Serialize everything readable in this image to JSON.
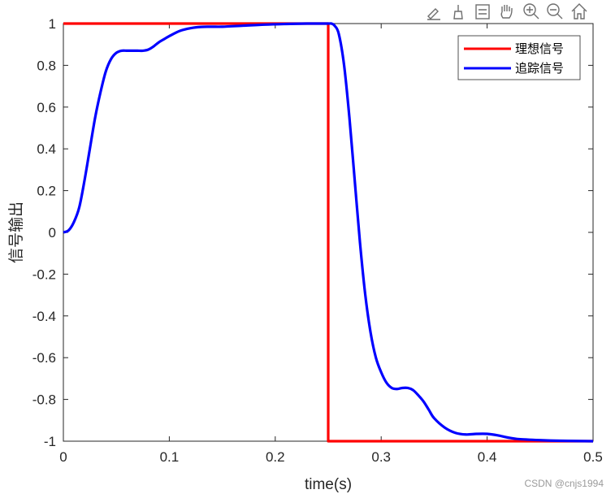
{
  "chart_data": {
    "type": "line",
    "title": "",
    "xlabel": "time(s)",
    "ylabel": "信号输出",
    "xlim": [
      0,
      0.5
    ],
    "ylim": [
      -1,
      1
    ],
    "xticks": [
      0,
      0.1,
      0.2,
      0.3,
      0.4,
      0.5
    ],
    "xtick_labels": [
      "0",
      "0.1",
      "0.2",
      "0.3",
      "0.4",
      "0.5"
    ],
    "yticks": [
      -1,
      -0.8,
      -0.6,
      -0.4,
      -0.2,
      0,
      0.2,
      0.4,
      0.6,
      0.8,
      1
    ],
    "ytick_labels": [
      "-1",
      "-0.8",
      "-0.6",
      "-0.4",
      "-0.2",
      "0",
      "0.2",
      "0.4",
      "0.6",
      "0.8",
      "1"
    ],
    "grid": false,
    "legend_position": "top-right",
    "series": [
      {
        "name": "理想信号",
        "color": "#ff0000",
        "x": [
          0,
          0.25,
          0.25,
          0.5
        ],
        "y": [
          1,
          1,
          -1,
          -1
        ]
      },
      {
        "name": "追踪信号",
        "color": "#0000ff",
        "x": [
          0,
          0.005,
          0.01,
          0.015,
          0.02,
          0.025,
          0.03,
          0.035,
          0.04,
          0.045,
          0.05,
          0.055,
          0.06,
          0.065,
          0.07,
          0.075,
          0.08,
          0.085,
          0.09,
          0.095,
          0.1,
          0.11,
          0.12,
          0.13,
          0.14,
          0.15,
          0.17,
          0.19,
          0.21,
          0.23,
          0.25,
          0.253,
          0.256,
          0.26,
          0.265,
          0.27,
          0.275,
          0.28,
          0.285,
          0.29,
          0.295,
          0.3,
          0.305,
          0.31,
          0.315,
          0.32,
          0.325,
          0.33,
          0.335,
          0.34,
          0.345,
          0.35,
          0.36,
          0.37,
          0.38,
          0.39,
          0.4,
          0.41,
          0.42,
          0.43,
          0.45,
          0.47,
          0.5
        ],
        "y": [
          0,
          0.01,
          0.05,
          0.12,
          0.25,
          0.4,
          0.55,
          0.67,
          0.77,
          0.83,
          0.86,
          0.87,
          0.87,
          0.87,
          0.87,
          0.87,
          0.875,
          0.89,
          0.91,
          0.925,
          0.94,
          0.965,
          0.978,
          0.984,
          0.985,
          0.985,
          0.99,
          0.995,
          0.998,
          1.0,
          1.0,
          1.0,
          0.99,
          0.95,
          0.8,
          0.55,
          0.25,
          -0.05,
          -0.3,
          -0.48,
          -0.6,
          -0.67,
          -0.72,
          -0.745,
          -0.75,
          -0.745,
          -0.745,
          -0.755,
          -0.78,
          -0.81,
          -0.85,
          -0.89,
          -0.935,
          -0.96,
          -0.968,
          -0.965,
          -0.965,
          -0.972,
          -0.983,
          -0.99,
          -0.995,
          -0.998,
          -1.0
        ]
      }
    ]
  },
  "toolbar": {
    "icons": [
      "export-icon",
      "brush-icon",
      "legend-icon",
      "pan-icon",
      "zoom-in-icon",
      "zoom-out-icon",
      "home-icon"
    ]
  },
  "watermark": "CSDN @cnjs1994"
}
